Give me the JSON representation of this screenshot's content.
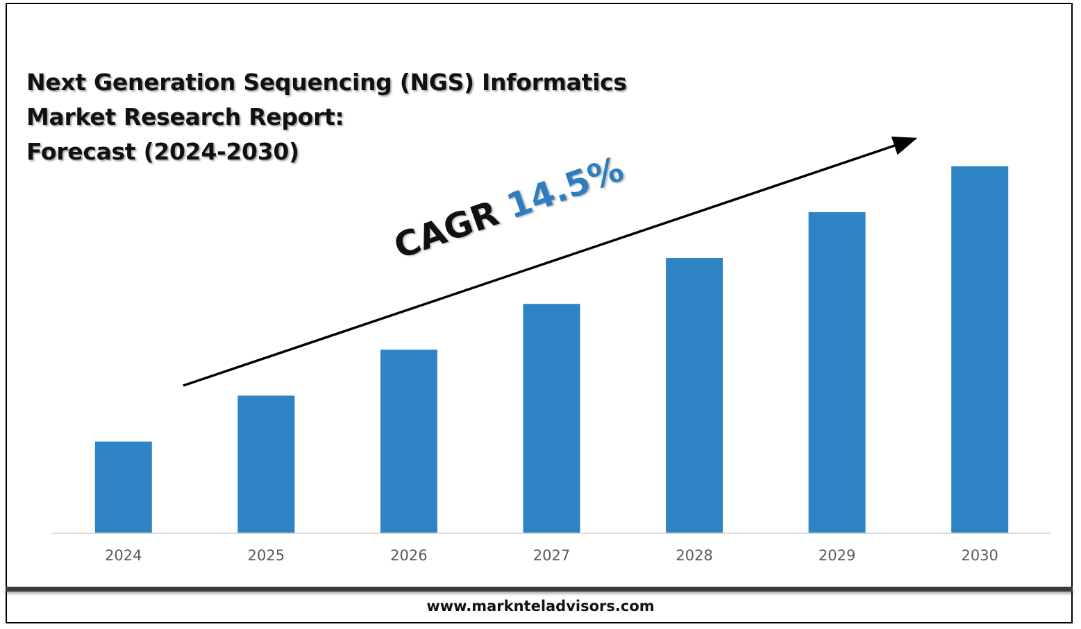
{
  "title_lines": [
    "Next Generation Sequencing (NGS) Informatics",
    "Market Research Report:",
    "Forecast (2024-2030)"
  ],
  "cagr": {
    "label": "CAGR",
    "value": "14.5%"
  },
  "footer": {
    "url": "www.marknteladvisors.com"
  },
  "colors": {
    "bar": "#2e83c4",
    "cagr_value": "#2e7ebf",
    "axis": "#d9d9d9",
    "tick_text": "#595959"
  },
  "chart_data": {
    "type": "bar",
    "categories": [
      "2024",
      "2025",
      "2026",
      "2027",
      "2028",
      "2029",
      "2030"
    ],
    "values": [
      1.0,
      1.5,
      2.0,
      2.5,
      3.0,
      3.5,
      4.0
    ],
    "ylim": [
      0,
      4.3
    ],
    "grid": false,
    "legend": "none",
    "annotation": "CAGR 14.5%"
  }
}
